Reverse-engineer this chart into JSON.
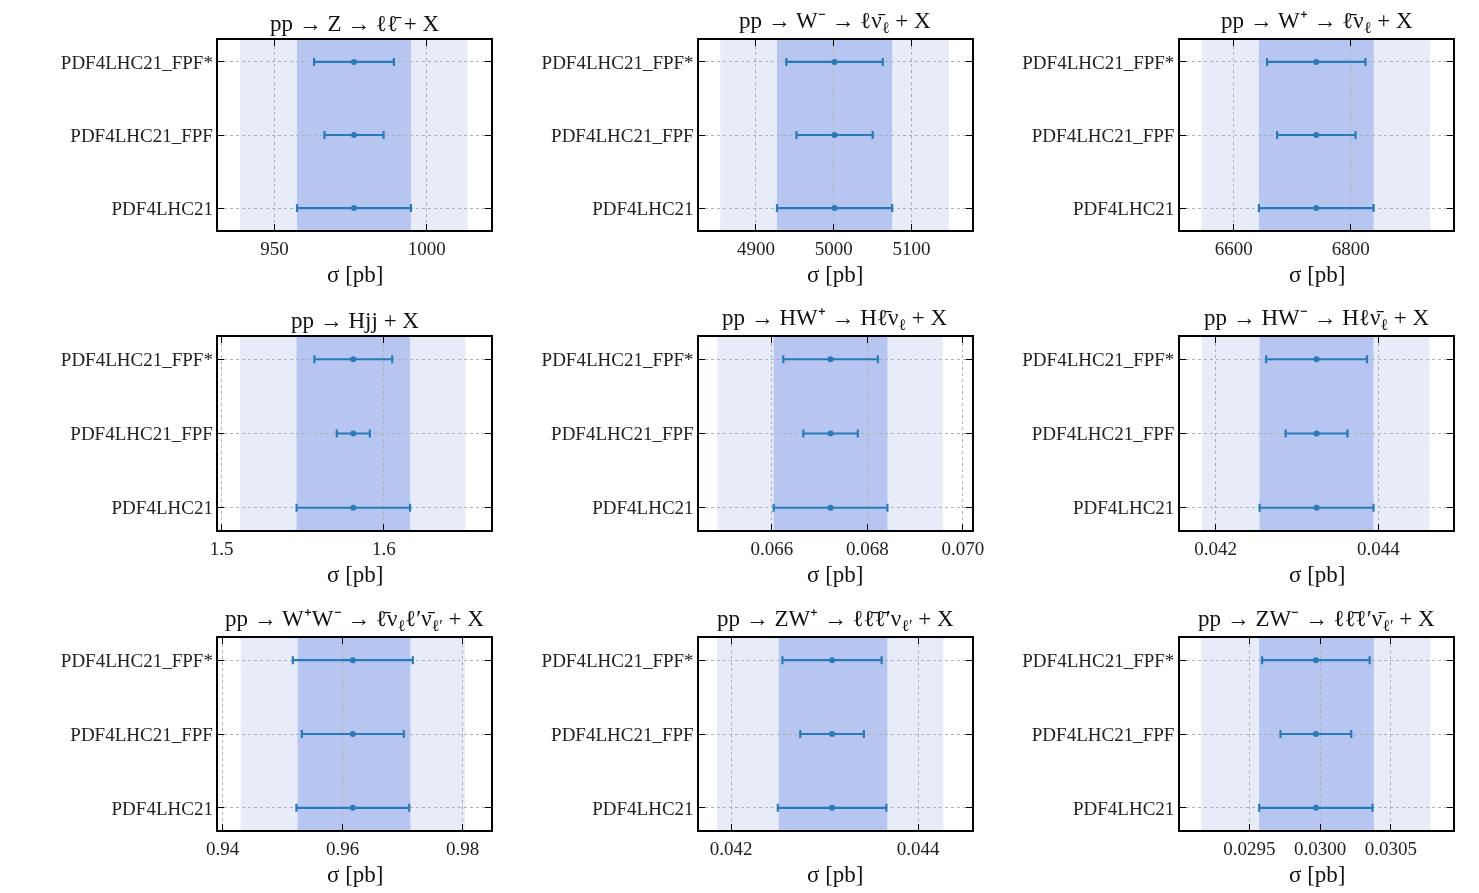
{
  "chart_data": [
    {
      "type": "scatter",
      "orientation": "horizontal",
      "title": "pp → Z → ℓℓ̄ + X",
      "xlabel": "σ [pb]",
      "categories": [
        "PDF4LHC21_FPF*",
        "PDF4LHC21_FPF",
        "PDF4LHC21"
      ],
      "values": [
        976.1,
        976.1,
        976.1
      ],
      "errors": [
        13.1,
        9.7,
        18.7
      ],
      "color": "#2a7ab9",
      "marker": "circle",
      "xlim": [
        931.6,
        1021
      ],
      "xticks": [
        950,
        1000
      ],
      "grid": true,
      "bands": [
        {
          "axis": "x",
          "from": 938.7,
          "to": 1013.4,
          "color": "#e8ecf9"
        },
        {
          "axis": "x",
          "from": 957.4,
          "to": 994.8,
          "color": "#b7c5f1"
        }
      ]
    },
    {
      "type": "scatter",
      "orientation": "horizontal",
      "title": "pp → W⁻ → ℓν̄$_{ℓ}$ + X",
      "xlabel": "σ [pb]",
      "categories": [
        "PDF4LHC21_FPF*",
        "PDF4LHC21_FPF",
        "PDF4LHC21"
      ],
      "values": [
        5001,
        5001,
        5001
      ],
      "errors": [
        62,
        49,
        74
      ],
      "color": "#2a7ab9",
      "marker": "circle",
      "xlim": [
        4827,
        5177
      ],
      "xticks": [
        4900,
        5000,
        5100
      ],
      "grid": true,
      "bands": [
        {
          "axis": "x",
          "from": 4854,
          "to": 5148,
          "color": "#e8ecf9"
        },
        {
          "axis": "x",
          "from": 4927,
          "to": 5075,
          "color": "#b7c5f1"
        }
      ]
    },
    {
      "type": "scatter",
      "orientation": "horizontal",
      "title": "pp → W⁺ → ℓ̄ν$_{ℓ}$ + X",
      "xlabel": "σ [pb]",
      "categories": [
        "PDF4LHC21_FPF*",
        "PDF4LHC21_FPF",
        "PDF4LHC21"
      ],
      "values": [
        6741,
        6741,
        6741
      ],
      "errors": [
        84,
        67,
        98
      ],
      "color": "#2a7ab9",
      "marker": "circle",
      "xlim": [
        6508,
        6975
      ],
      "xticks": [
        6600,
        6800
      ],
      "grid": true,
      "bands": [
        {
          "axis": "x",
          "from": 6545,
          "to": 6936,
          "color": "#e8ecf9"
        },
        {
          "axis": "x",
          "from": 6643,
          "to": 6839,
          "color": "#b7c5f1"
        }
      ]
    },
    {
      "type": "scatter",
      "orientation": "horizontal",
      "title": "pp → Hjj + X",
      "xlabel": "σ [pb]",
      "categories": [
        "PDF4LHC21_FPF*",
        "PDF4LHC21_FPF",
        "PDF4LHC21"
      ],
      "values": [
        1.5812,
        1.5812,
        1.5812
      ],
      "errors": [
        0.024,
        0.0102,
        0.035
      ],
      "color": "#2a7ab9",
      "marker": "circle",
      "xlim": [
        1.498,
        1.666
      ],
      "xticks": [
        1.5,
        1.6
      ],
      "grid": true,
      "bands": [
        {
          "axis": "x",
          "from": 1.5112,
          "to": 1.6503,
          "color": "#e8ecf9"
        },
        {
          "axis": "x",
          "from": 1.5462,
          "to": 1.6162,
          "color": "#b7c5f1"
        }
      ]
    },
    {
      "type": "scatter",
      "orientation": "horizontal",
      "title": "pp → HW⁺ → Hℓ̄ν$_{ℓ}$ + X",
      "xlabel": "σ [pb]",
      "categories": [
        "PDF4LHC21_FPF*",
        "PDF4LHC21_FPF",
        "PDF4LHC21"
      ],
      "values": [
        0.06723,
        0.06723,
        0.06723
      ],
      "errors": [
        0.00099,
        0.00057,
        0.00119
      ],
      "color": "#2a7ab9",
      "marker": "circle",
      "xlim": [
        0.06448,
        0.07018
      ],
      "xticks": [
        0.066,
        0.068,
        {
          "value": 0.07,
          "label": "0.070"
        }
      ],
      "grid": true,
      "bands": [
        {
          "axis": "x",
          "from": 0.06486,
          "to": 0.06958,
          "color": "#e8ecf9"
        },
        {
          "axis": "x",
          "from": 0.06604,
          "to": 0.06842,
          "color": "#b7c5f1"
        }
      ]
    },
    {
      "type": "scatter",
      "orientation": "horizontal",
      "title": "pp → HW⁻ → Hℓν̄$_{ℓ}$ + X",
      "xlabel": "σ [pb]",
      "categories": [
        "PDF4LHC21_FPF*",
        "PDF4LHC21_FPF",
        "PDF4LHC21"
      ],
      "values": [
        0.04324,
        0.04324,
        0.04324
      ],
      "errors": [
        0.00062,
        0.00038,
        0.0007
      ],
      "color": "#2a7ab9",
      "marker": "circle",
      "xlim": [
        0.04156,
        0.04492
      ],
      "xticks": [
        0.042,
        0.044
      ],
      "grid": true,
      "bands": [
        {
          "axis": "x",
          "from": 0.04183,
          "to": 0.04463,
          "color": "#e8ecf9"
        },
        {
          "axis": "x",
          "from": 0.04254,
          "to": 0.04394,
          "color": "#b7c5f1"
        }
      ]
    },
    {
      "type": "scatter",
      "orientation": "horizontal",
      "title": "pp → W⁺W⁻ → ℓ̄ν$_{ℓ}$ℓ′ν̄$_{ℓ′}$ + X",
      "xlabel": "σ [pb]",
      "categories": [
        "PDF4LHC21_FPF*",
        "PDF4LHC21_FPF",
        "PDF4LHC21"
      ],
      "values": [
        0.9617,
        0.9617,
        0.9617
      ],
      "errors": [
        0.01,
        0.0085,
        0.0094
      ],
      "color": "#2a7ab9",
      "marker": "circle",
      "xlim": [
        0.9393,
        0.9847
      ],
      "xticks": [
        0.94,
        0.96,
        0.98
      ],
      "grid": true,
      "bands": [
        {
          "axis": "x",
          "from": 0.943,
          "to": 0.9804,
          "color": "#e8ecf9"
        },
        {
          "axis": "x",
          "from": 0.9525,
          "to": 0.9713,
          "color": "#b7c5f1"
        }
      ]
    },
    {
      "type": "scatter",
      "orientation": "horizontal",
      "title": "pp → ZW⁺ → ℓℓ̄ℓ̄′ν$_{ℓ′}$ + X",
      "xlabel": "σ [pb]",
      "categories": [
        "PDF4LHC21_FPF*",
        "PDF4LHC21_FPF",
        "PDF4LHC21"
      ],
      "values": [
        0.04308,
        0.04308,
        0.04308
      ],
      "errors": [
        0.00053,
        0.00034,
        0.00058
      ],
      "color": "#2a7ab9",
      "marker": "circle",
      "xlim": [
        0.04166,
        0.04457
      ],
      "xticks": [
        0.042,
        0.044
      ],
      "grid": true,
      "bands": [
        {
          "axis": "x",
          "from": 0.04185,
          "to": 0.04427,
          "color": "#e8ecf9"
        },
        {
          "axis": "x",
          "from": 0.04251,
          "to": 0.04367,
          "color": "#b7c5f1"
        }
      ]
    },
    {
      "type": "scatter",
      "orientation": "horizontal",
      "title": "pp → ZW⁻ → ℓℓ̄ℓ′ν̄$_{ℓ′}$ + X",
      "xlabel": "σ [pb]",
      "categories": [
        "PDF4LHC21_FPF*",
        "PDF4LHC21_FPF",
        "PDF4LHC21"
      ],
      "values": [
        0.02997,
        0.02997,
        0.02997
      ],
      "errors": [
        0.00038,
        0.00025,
        0.0004
      ],
      "color": "#2a7ab9",
      "marker": "circle",
      "xlim": [
        0.02901,
        0.03094
      ],
      "xticks": [
        {
          "value": 0.0295,
          "label": "0.0295"
        },
        {
          "value": 0.03,
          "label": "0.0300"
        },
        {
          "value": 0.0305,
          "label": "0.0305"
        }
      ],
      "grid": true,
      "bands": [
        {
          "axis": "x",
          "from": 0.02916,
          "to": 0.03078,
          "color": "#e8ecf9"
        },
        {
          "axis": "x",
          "from": 0.02957,
          "to": 0.03038,
          "color": "#b7c5f1"
        }
      ]
    }
  ]
}
